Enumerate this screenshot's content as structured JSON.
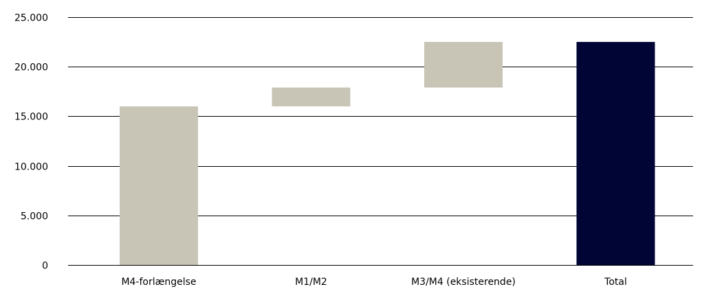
{
  "chart_data": {
    "type": "bar",
    "subtype": "waterfall",
    "title": "",
    "xlabel": "",
    "ylabel": "",
    "ylim": [
      0,
      25000
    ],
    "yticks": [
      0,
      5000,
      10000,
      15000,
      20000,
      25000
    ],
    "ytick_labels": [
      "0",
      "5.000",
      "10.000",
      "15.000",
      "20.000",
      "25.000"
    ],
    "grid": true,
    "categories": [
      "M4-forlængelse",
      "M1/M2",
      "M3/M4 (eksisterende)",
      "Total"
    ],
    "bars": [
      {
        "start": 0,
        "end": 16000,
        "color": "#c8c5b6"
      },
      {
        "start": 16000,
        "end": 17900,
        "color": "#c8c5b6"
      },
      {
        "start": 17900,
        "end": 22500,
        "color": "#c8c5b6"
      },
      {
        "start": 0,
        "end": 22500,
        "color": "#000536"
      }
    ]
  }
}
